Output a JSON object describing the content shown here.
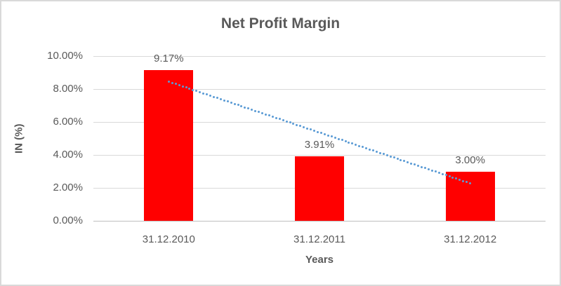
{
  "chart": {
    "title": "Net Profit Margin",
    "y_axis_title": "IN (%)",
    "x_axis_title": "Years"
  },
  "chart_data": {
    "type": "bar",
    "title": "Net Profit Margin",
    "categories": [
      "31.12.2010",
      "31.12.2011",
      "31.12.2012"
    ],
    "values": [
      9.17,
      3.91,
      3.0
    ],
    "data_labels": [
      "9.17%",
      "3.91%",
      "3.00%"
    ],
    "xlabel": "Years",
    "ylabel": "IN (%)",
    "ylim": [
      0,
      10
    ],
    "y_ticks": [
      {
        "value": 10,
        "label": "10.00%"
      },
      {
        "value": 8,
        "label": "8.00%"
      },
      {
        "value": 6,
        "label": "6.00%"
      },
      {
        "value": 4,
        "label": "4.00%"
      },
      {
        "value": 2,
        "label": "2.00%"
      },
      {
        "value": 0,
        "label": "0.00%"
      }
    ],
    "grid": true,
    "legend": "none",
    "bar_color": "#FF0000",
    "gridline_color": "#D9D9D9",
    "axis_line_color": "#BFBFBF",
    "text_color": "#595959",
    "trendline": {
      "type": "linear",
      "style": "dotted",
      "color": "#5B9BD5"
    }
  }
}
